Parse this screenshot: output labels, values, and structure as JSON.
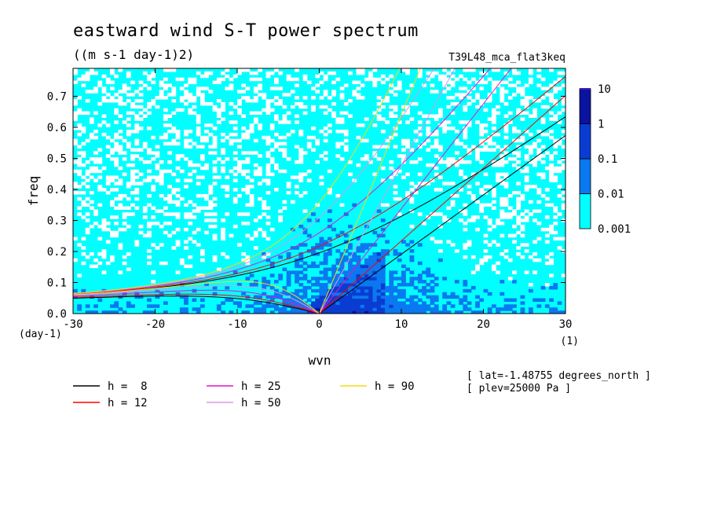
{
  "chart_data": {
    "type": "heatmap",
    "title": "eastward wind S-T power spectrum",
    "subtitle": "((m s-1 day-1)2)",
    "run_label": "T39L48_mca_flat3keq",
    "xlabel": "wvn",
    "ylabel": "freq",
    "xunit": "(1)",
    "yunit": "(day-1)",
    "xlim": [
      -30,
      30
    ],
    "ylim": [
      0,
      0.79
    ],
    "xticks": [
      "-30",
      "-20",
      "-10",
      "0",
      "10",
      "20",
      "30"
    ],
    "xtick_values": [
      -30,
      -20,
      -10,
      0,
      10,
      20,
      30
    ],
    "yticks": [
      "0.0",
      "0.1",
      "0.2",
      "0.3",
      "0.4",
      "0.5",
      "0.6",
      "0.7"
    ],
    "ytick_values": [
      0,
      0.1,
      0.2,
      0.3,
      0.4,
      0.5,
      0.6,
      0.7
    ],
    "colorbar": {
      "levels": [
        "0.001",
        "0.01",
        "0.1",
        "1",
        "10"
      ],
      "colors": [
        "#00ffff",
        "#0a78f0",
        "#0a3cd2",
        "#0a14a0",
        "#461eb4"
      ]
    },
    "dispersion_curves": [
      {
        "label": "h =  8",
        "h": 8,
        "color": "#000000"
      },
      {
        "label": "h = 12",
        "h": 12,
        "color": "#ff0000"
      },
      {
        "label": "h = 25",
        "h": 25,
        "color": "#e614c8"
      },
      {
        "label": "h = 50",
        "h": 50,
        "color": "#dc96e6"
      },
      {
        "label": "h = 90",
        "h": 90,
        "color": "#f0dc14"
      }
    ],
    "annotations": [
      "[ lat=-1.48755 degrees_north ]",
      "[ plev=25000 Pa ]"
    ]
  }
}
